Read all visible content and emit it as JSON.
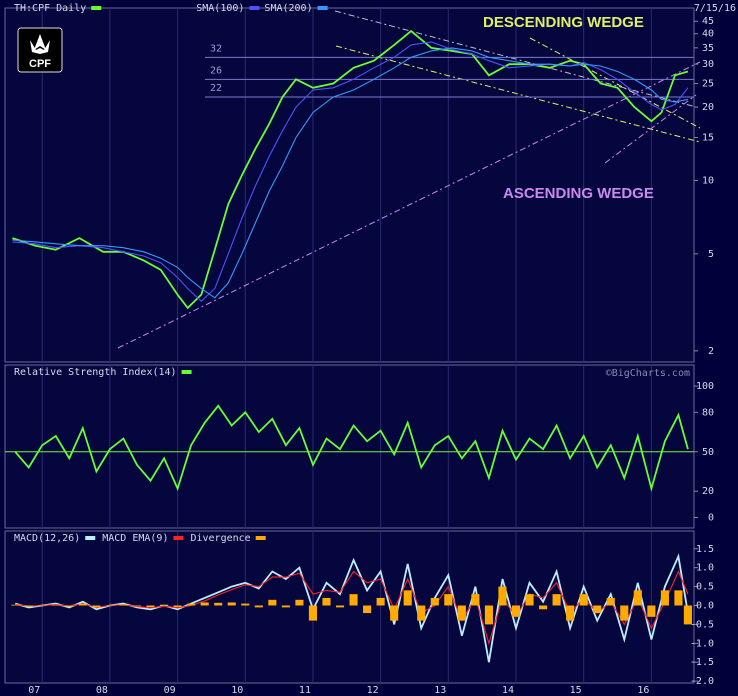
{
  "logo": "CPF",
  "date": "7/15/16",
  "chart_data": [
    {
      "type": "line",
      "log_scale": true,
      "xlim": [
        2006.45,
        2016.63
      ],
      "ylim": [
        1.8,
        51
      ],
      "yticks": [
        45,
        40,
        35,
        30,
        25,
        20,
        15,
        10,
        5,
        2
      ],
      "levels": [
        32,
        26,
        22
      ],
      "annotations": [
        {
          "text": "DESCENDING WEDGE",
          "color": "#e0f060"
        },
        {
          "text": "ASCENDING WEDGE",
          "color": "#cc88ee"
        }
      ],
      "x": [
        2006.56,
        2006.9,
        2007.2,
        2007.55,
        2007.9,
        2008.2,
        2008.5,
        2008.75,
        2009.0,
        2009.15,
        2009.35,
        2009.55,
        2009.75,
        2009.95,
        2010.15,
        2010.35,
        2010.55,
        2010.75,
        2011.0,
        2011.3,
        2011.6,
        2011.9,
        2012.2,
        2012.45,
        2012.75,
        2013.05,
        2013.35,
        2013.6,
        2013.9,
        2014.2,
        2014.5,
        2014.8,
        2015.0,
        2015.25,
        2015.5,
        2015.75,
        2016.0,
        2016.15,
        2016.35,
        2016.54
      ],
      "series": [
        {
          "name": "TH:CPF Daily",
          "color": "#66ff33",
          "values": [
            5.8,
            5.4,
            5.2,
            5.8,
            5.1,
            5.1,
            4.7,
            4.3,
            3.4,
            3.0,
            3.4,
            5.2,
            8,
            10.5,
            13.5,
            17,
            22,
            26,
            24,
            25,
            29,
            31,
            36,
            41,
            35,
            34,
            33,
            27,
            30,
            30,
            29,
            31,
            30,
            25,
            24,
            20,
            17.5,
            19,
            27,
            28
          ]
        },
        {
          "name": "SMA(100)",
          "color": "#5050ff",
          "values": [
            5.6,
            5.5,
            5.3,
            5.4,
            5.3,
            5.1,
            4.9,
            4.6,
            4.0,
            3.6,
            3.2,
            3.6,
            5,
            7,
            9.5,
            12.5,
            16,
            20,
            23.5,
            24,
            26,
            29,
            32,
            36,
            37,
            34.5,
            33,
            31,
            29,
            29.5,
            30,
            29.5,
            30.5,
            28.5,
            26,
            23,
            20.5,
            19.5,
            20.5,
            24
          ]
        },
        {
          "name": "SMA(200)",
          "color": "#3399ff",
          "values": [
            5.7,
            5.6,
            5.5,
            5.4,
            5.4,
            5.3,
            5.1,
            4.8,
            4.4,
            4.0,
            3.6,
            3.3,
            3.8,
            5,
            6.7,
            9,
            11.5,
            15,
            19,
            22,
            23.5,
            26,
            29,
            32,
            34,
            35,
            34,
            32,
            31,
            30,
            30,
            29.5,
            30,
            29.5,
            28,
            26,
            23.5,
            21.5,
            21,
            21.5
          ]
        }
      ]
    },
    {
      "type": "line",
      "xlim": [
        2006.45,
        2016.63
      ],
      "ylim": [
        -8,
        116
      ],
      "yticks": [
        100,
        80,
        50,
        20,
        0
      ],
      "reference": 50,
      "watermark": "©BigCharts.com",
      "x": [
        2006.6,
        2006.8,
        2007.0,
        2007.2,
        2007.4,
        2007.6,
        2007.8,
        2008.0,
        2008.2,
        2008.4,
        2008.6,
        2008.8,
        2009.0,
        2009.2,
        2009.4,
        2009.6,
        2009.8,
        2010.0,
        2010.2,
        2010.4,
        2010.6,
        2010.8,
        2011.0,
        2011.2,
        2011.4,
        2011.6,
        2011.8,
        2012.0,
        2012.2,
        2012.4,
        2012.6,
        2012.8,
        2013.0,
        2013.2,
        2013.4,
        2013.6,
        2013.8,
        2014.0,
        2014.2,
        2014.4,
        2014.6,
        2014.8,
        2015.0,
        2015.2,
        2015.4,
        2015.6,
        2015.8,
        2016.0,
        2016.2,
        2016.4,
        2016.54
      ],
      "series": [
        {
          "name": "Relative Strength Index(14)",
          "color": "#66ff33",
          "values": [
            50,
            38,
            55,
            62,
            45,
            68,
            35,
            52,
            60,
            40,
            28,
            45,
            22,
            55,
            72,
            85,
            70,
            80,
            65,
            75,
            55,
            68,
            40,
            60,
            52,
            70,
            58,
            66,
            48,
            72,
            38,
            55,
            62,
            45,
            58,
            30,
            66,
            44,
            60,
            52,
            70,
            45,
            62,
            38,
            55,
            30,
            62,
            22,
            58,
            78,
            52
          ]
        }
      ]
    },
    {
      "type": "line",
      "xlim": [
        2006.45,
        2016.63
      ],
      "ylim": [
        -2.05,
        1.97
      ],
      "yticks": [
        1.5,
        {
          "value": 1,
          "label": "1.0"
        },
        0.5,
        {
          "value": 0,
          "label": "0.0"
        },
        -0.5,
        {
          "value": -1,
          "label": "-1.0"
        },
        -1.5,
        {
          "value": -2,
          "label": "-2.0"
        }
      ],
      "xticks": [
        {
          "value": 2007,
          "label": "07"
        },
        {
          "value": 2008,
          "label": "08"
        },
        {
          "value": 2009,
          "label": "09"
        },
        {
          "value": 2010,
          "label": "10"
        },
        {
          "value": 2011,
          "label": "11"
        },
        {
          "value": 2012,
          "label": "12"
        },
        {
          "value": 2013,
          "label": "13"
        },
        {
          "value": 2014,
          "label": "14"
        },
        {
          "value": 2015,
          "label": "15"
        },
        {
          "value": 2016,
          "label": "16"
        }
      ],
      "x": [
        2006.6,
        2006.8,
        2007.0,
        2007.2,
        2007.4,
        2007.6,
        2007.8,
        2008.0,
        2008.2,
        2008.4,
        2008.6,
        2008.8,
        2009.0,
        2009.2,
        2009.4,
        2009.6,
        2009.8,
        2010.0,
        2010.2,
        2010.4,
        2010.6,
        2010.8,
        2011.0,
        2011.2,
        2011.4,
        2011.6,
        2011.8,
        2012.0,
        2012.2,
        2012.4,
        2012.6,
        2012.8,
        2013.0,
        2013.2,
        2013.4,
        2013.6,
        2013.8,
        2014.0,
        2014.2,
        2014.4,
        2014.6,
        2014.8,
        2015.0,
        2015.2,
        2015.4,
        2015.6,
        2015.8,
        2016.0,
        2016.2,
        2016.4,
        2016.54
      ],
      "series": [
        {
          "name": "MACD(12,26)",
          "color": "#bbeeff",
          "values": [
            0.05,
            -0.05,
            0.0,
            0.05,
            -0.05,
            0.1,
            -0.1,
            0.0,
            0.05,
            -0.05,
            -0.1,
            0.0,
            -0.1,
            0.05,
            0.2,
            0.35,
            0.5,
            0.6,
            0.45,
            0.9,
            0.7,
            1.0,
            -0.1,
            0.6,
            0.3,
            1.2,
            0.4,
            0.9,
            -0.5,
            1.1,
            -0.6,
            0.2,
            0.8,
            -0.8,
            0.5,
            -1.5,
            0.7,
            -0.6,
            0.6,
            0.1,
            0.9,
            -0.6,
            0.5,
            -0.4,
            0.3,
            -0.9,
            0.6,
            -0.9,
            0.5,
            1.3,
            -0.2
          ]
        },
        {
          "name": "MACD EMA(9)",
          "color": "#ff2222",
          "values": [
            0.03,
            -0.02,
            0.0,
            0.03,
            -0.02,
            0.05,
            -0.05,
            0.0,
            0.02,
            -0.03,
            -0.06,
            -0.02,
            -0.06,
            0.0,
            0.12,
            0.28,
            0.42,
            0.55,
            0.5,
            0.75,
            0.75,
            0.85,
            0.3,
            0.4,
            0.35,
            0.9,
            0.6,
            0.7,
            -0.1,
            0.7,
            -0.2,
            0.0,
            0.5,
            -0.4,
            0.2,
            -1.0,
            0.2,
            -0.3,
            0.3,
            0.2,
            0.6,
            -0.2,
            0.2,
            -0.2,
            0.1,
            -0.5,
            0.2,
            -0.6,
            0.1,
            0.9,
            0.3
          ]
        },
        {
          "name": "Divergence",
          "color": "#ffaa00",
          "type": "bar",
          "values": [
            0.02,
            -0.03,
            0,
            0.02,
            -0.03,
            0.05,
            -0.05,
            0,
            0.03,
            -0.02,
            -0.04,
            0.02,
            -0.04,
            0.05,
            0.08,
            0.07,
            0.08,
            0.05,
            -0.05,
            0.15,
            -0.05,
            0.15,
            -0.4,
            0.2,
            -0.05,
            0.3,
            -0.2,
            0.2,
            -0.4,
            0.4,
            -0.4,
            0.2,
            0.3,
            -0.4,
            0.3,
            -0.5,
            0.5,
            -0.3,
            0.3,
            -0.1,
            0.3,
            -0.4,
            0.3,
            -0.2,
            0.2,
            -0.4,
            0.4,
            -0.3,
            0.4,
            0.4,
            -0.5
          ]
        }
      ]
    }
  ]
}
